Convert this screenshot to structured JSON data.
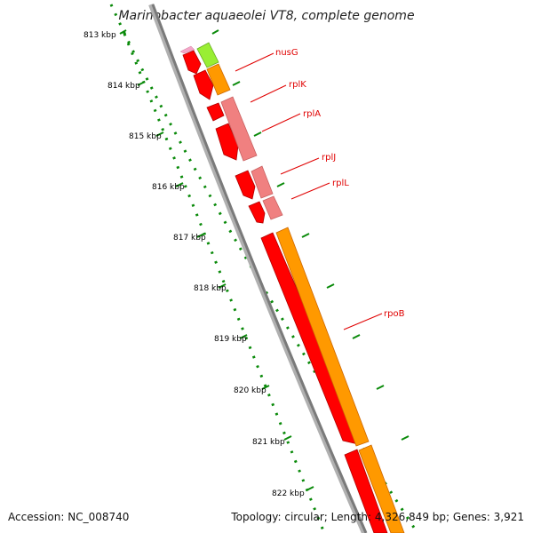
{
  "title": "Marinobacter aquaeolei VT8, complete genome",
  "footer": {
    "accession": "Accession: NC_008740",
    "summary": "Topology: circular; Length: 4,326,849 bp; Genes: 3,921"
  },
  "scale": {
    "ticks": [
      "813 kbp",
      "814 kbp",
      "815 kbp",
      "816 kbp",
      "817 kbp",
      "818 kbp",
      "819 kbp",
      "820 kbp",
      "821 kbp",
      "822 kbp"
    ]
  },
  "genes": [
    {
      "name": "nusG"
    },
    {
      "name": "rplK"
    },
    {
      "name": "rplA"
    },
    {
      "name": "rplJ"
    },
    {
      "name": "rplL"
    },
    {
      "name": "rpoB"
    }
  ],
  "colors": {
    "cds": "#ff0000",
    "cds_dark": "#c00000",
    "nusG": "#99ee33",
    "rplK": "#ff9900",
    "ribosomal": "#f08080",
    "rpoB": "#ff9900",
    "backbone": "#8c8c8c",
    "tick": "#0a8a0a",
    "label": "#e00000"
  }
}
